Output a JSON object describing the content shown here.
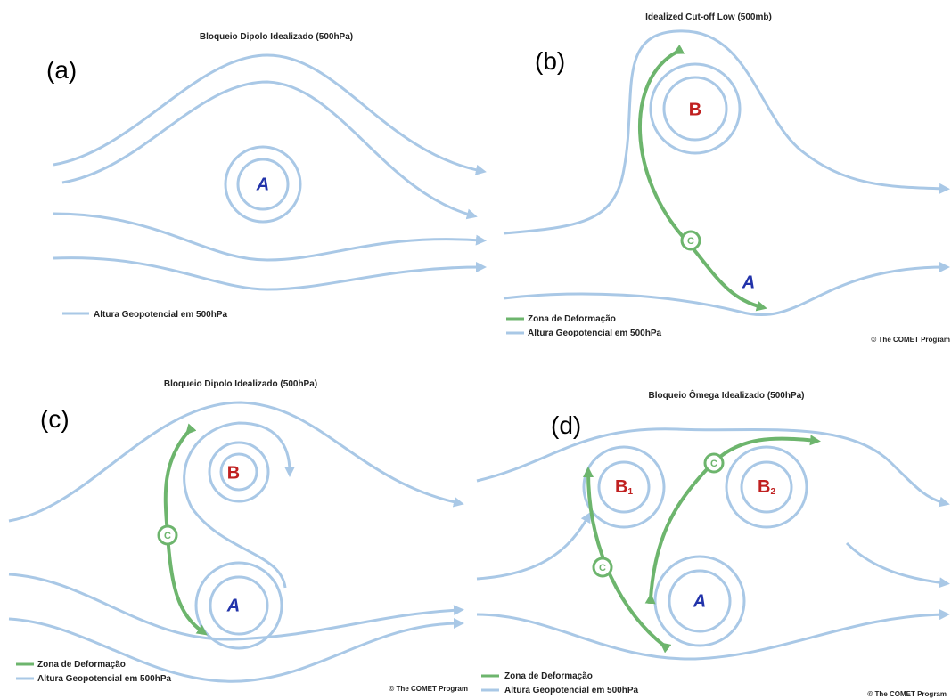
{
  "panels": [
    {
      "label": "(a)",
      "title": "Bloqueio Dipolo Idealizado (500hPa)",
      "centers": [
        {
          "text": "A"
        }
      ],
      "legend": [
        "Altura Geopotencial em 500hPa"
      ]
    },
    {
      "label": "(b)",
      "title": "Idealized Cut-off Low (500mb)",
      "centers": [
        {
          "text": "B"
        },
        {
          "text": "A"
        }
      ],
      "deformation": [
        "C"
      ],
      "legend": [
        "Zona de Deformação",
        "Altura Geopotencial em 500hPa"
      ],
      "credit": "© The COMET Program"
    },
    {
      "label": "(c)",
      "title": "Bloqueio Dipolo Idealizado (500hPa)",
      "centers": [
        {
          "text": "B"
        },
        {
          "text": "A"
        }
      ],
      "deformation": [
        "C"
      ],
      "legend": [
        "Zona de Deformação",
        "Altura Geopotencial em 500hPa"
      ],
      "credit": "© The COMET Program"
    },
    {
      "label": "(d)",
      "title": "Bloqueio Ômega Idealizado (500hPa)",
      "centers": [
        {
          "text": "B",
          "sub": "1"
        },
        {
          "text": "B",
          "sub": "2"
        },
        {
          "text": "A"
        }
      ],
      "deformation": [
        "C",
        "C"
      ],
      "legend": [
        "Zona de Deformação",
        "Altura Geopotencial em 500hPa"
      ],
      "credit": "© The COMET Program"
    }
  ]
}
